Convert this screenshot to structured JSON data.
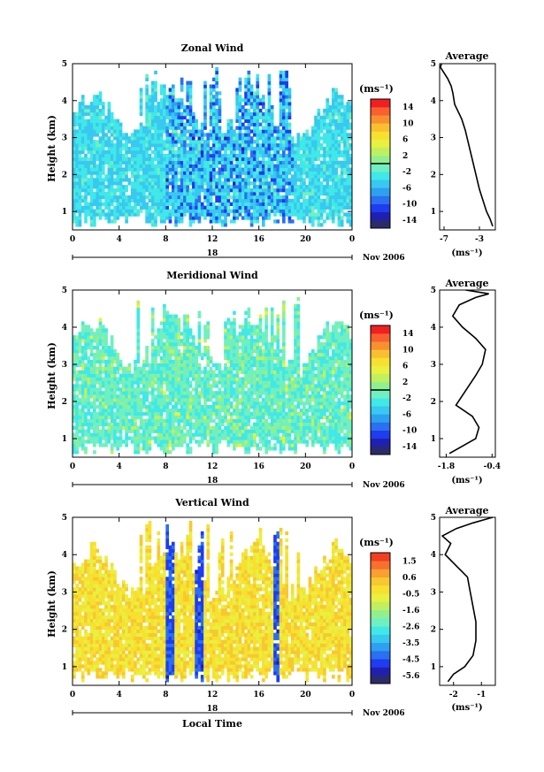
{
  "chart_data": [
    {
      "type": "heatmap",
      "title": "Zonal Wind",
      "ylabel": "Height (km)",
      "xlabel": "",
      "x_ticks": [
        "0",
        "4",
        "8",
        "12",
        "16",
        "20",
        "0"
      ],
      "y_ticks": [
        "1",
        "2",
        "3",
        "4",
        "5"
      ],
      "xlim": [
        0,
        24
      ],
      "ylim": [
        0.5,
        5
      ],
      "date_mark": "18",
      "date_label": "Nov 2006",
      "colorbar": {
        "unit": "(ms⁻¹)",
        "ticks": [
          "14",
          "10",
          "6",
          "2",
          "-2",
          "-6",
          "-10",
          "-14"
        ],
        "range": [
          -16,
          16
        ],
        "zero_line": 0
      },
      "field": {
        "base": -3.8,
        "scale": 2.2,
        "dominant_sign": -1,
        "pattern": "mostly weak easterly (blue) flow below 3.5 km, strongest near 08-20 LT"
      },
      "average_profile": {
        "title": "Average",
        "xlabel": "(ms⁻¹)",
        "x_ticks": [
          "-7",
          "-3"
        ],
        "xlim": [
          -7.5,
          -1.2
        ],
        "y_ticks": [
          "1",
          "2",
          "3",
          "4",
          "5"
        ],
        "ylim": [
          0.5,
          5
        ],
        "points": [
          [
            -1.5,
            0.6
          ],
          [
            -1.8,
            0.8
          ],
          [
            -2.2,
            1.0
          ],
          [
            -2.6,
            1.3
          ],
          [
            -3.0,
            1.6
          ],
          [
            -3.4,
            2.0
          ],
          [
            -3.8,
            2.4
          ],
          [
            -4.2,
            2.8
          ],
          [
            -4.6,
            3.2
          ],
          [
            -5.0,
            3.5
          ],
          [
            -5.4,
            3.7
          ],
          [
            -5.8,
            3.9
          ],
          [
            -6.0,
            4.2
          ],
          [
            -6.2,
            4.4
          ],
          [
            -6.6,
            4.6
          ],
          [
            -7.0,
            4.75
          ],
          [
            -7.4,
            4.9
          ],
          [
            -7.3,
            5.0
          ]
        ]
      }
    },
    {
      "type": "heatmap",
      "title": "Meridional Wind",
      "ylabel": "Height (km)",
      "xlabel": "",
      "x_ticks": [
        "0",
        "4",
        "8",
        "12",
        "16",
        "20",
        "0"
      ],
      "y_ticks": [
        "1",
        "2",
        "3",
        "4",
        "5"
      ],
      "xlim": [
        0,
        24
      ],
      "ylim": [
        0.5,
        5
      ],
      "date_mark": "18",
      "date_label": "Nov 2006",
      "colorbar": {
        "unit": "(ms⁻¹)",
        "ticks": [
          "14",
          "10",
          "6",
          "2",
          "-2",
          "-6",
          "-10",
          "-14"
        ],
        "range": [
          -16,
          16
        ],
        "zero_line": 0
      },
      "field": {
        "base": -1.6,
        "scale": 2.0,
        "dominant_sign": -1,
        "pattern": "weak northerly (cyan) flow with scattered weak southerly patches below 3 km"
      },
      "average_profile": {
        "title": "Average",
        "xlabel": "(ms⁻¹)",
        "x_ticks": [
          "-1.8",
          "-0.4"
        ],
        "xlim": [
          -2.0,
          -0.3
        ],
        "y_ticks": [
          "1",
          "2",
          "3",
          "4",
          "5"
        ],
        "ylim": [
          0.5,
          5
        ],
        "points": [
          [
            -1.7,
            0.6
          ],
          [
            -1.3,
            0.8
          ],
          [
            -0.9,
            1.0
          ],
          [
            -0.8,
            1.3
          ],
          [
            -1.0,
            1.6
          ],
          [
            -1.5,
            1.9
          ],
          [
            -1.2,
            2.3
          ],
          [
            -0.9,
            2.7
          ],
          [
            -0.7,
            3.0
          ],
          [
            -0.6,
            3.4
          ],
          [
            -0.9,
            3.7
          ],
          [
            -1.3,
            4.0
          ],
          [
            -1.6,
            4.3
          ],
          [
            -1.4,
            4.6
          ],
          [
            -0.9,
            4.8
          ],
          [
            -0.5,
            4.9
          ],
          [
            -1.2,
            5.0
          ]
        ]
      }
    },
    {
      "type": "heatmap",
      "title": "Vertical Wind",
      "ylabel": "Height (km)",
      "xlabel": "Local Time",
      "x_ticks": [
        "0",
        "4",
        "8",
        "12",
        "16",
        "20",
        "0"
      ],
      "y_ticks": [
        "1",
        "2",
        "3",
        "4",
        "5"
      ],
      "xlim": [
        0,
        24
      ],
      "ylim": [
        0.5,
        5
      ],
      "date_mark": "18",
      "date_label": "Nov 2006",
      "colorbar": {
        "unit": "(ms⁻¹)",
        "ticks": [
          "1.5",
          "0.6",
          "-0.5",
          "-1.6",
          "-2.6",
          "-3.5",
          "-4.5",
          "-5.6"
        ],
        "range": [
          -6.2,
          2.0
        ],
        "zero_line": null
      },
      "field": {
        "base": -0.3,
        "scale": 0.6,
        "dominant_sign": 1,
        "pattern": "mostly near-zero (yellow/orange) with strong downdrafts (dark blue) near 08-11 LT and 17-18 LT"
      },
      "average_profile": {
        "title": "Average",
        "xlabel": "(ms⁻¹)",
        "x_ticks": [
          "-2",
          "-1"
        ],
        "xlim": [
          -2.5,
          -0.5
        ],
        "y_ticks": [
          "1",
          "2",
          "3",
          "4",
          "5"
        ],
        "ylim": [
          0.5,
          5
        ],
        "points": [
          [
            -2.2,
            0.6
          ],
          [
            -2.0,
            0.8
          ],
          [
            -1.6,
            1.0
          ],
          [
            -1.3,
            1.3
          ],
          [
            -1.2,
            1.7
          ],
          [
            -1.2,
            2.2
          ],
          [
            -1.3,
            2.6
          ],
          [
            -1.4,
            3.0
          ],
          [
            -1.5,
            3.4
          ],
          [
            -1.9,
            3.7
          ],
          [
            -2.3,
            4.0
          ],
          [
            -2.1,
            4.3
          ],
          [
            -2.4,
            4.5
          ],
          [
            -1.9,
            4.7
          ],
          [
            -1.3,
            4.85
          ],
          [
            -0.6,
            5.0
          ]
        ]
      }
    }
  ],
  "colors": {
    "colorbar": [
      "#2b2b6b",
      "#2020b0",
      "#1e3cf0",
      "#2a70f0",
      "#2ea0f0",
      "#38c8f0",
      "#40e8e8",
      "#70f0c0",
      "#90f090",
      "#c0f060",
      "#e8f040",
      "#f8e030",
      "#f8c030",
      "#f89030",
      "#f86030",
      "#f02020"
    ],
    "colorbar_w": [
      "#2b2b6b",
      "#2020b0",
      "#1e3cf0",
      "#2a70f0",
      "#2ea0f0",
      "#38c8f0",
      "#40e8e8",
      "#70f0c0",
      "#90f090",
      "#c0f060",
      "#e8f040",
      "#f8e030",
      "#f8c830",
      "#f8a030",
      "#f87030",
      "#f04020"
    ]
  }
}
